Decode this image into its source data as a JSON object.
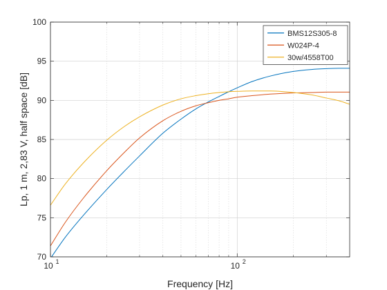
{
  "chart_data": {
    "type": "line",
    "title": "",
    "xlabel": "Frequency [Hz]",
    "ylabel": "Lp, 1 m, 2,83 V, half space [dB]",
    "xscale": "log",
    "xlim": [
      10,
      400
    ],
    "ylim": [
      70,
      100
    ],
    "x_ticks": [
      {
        "value": 10,
        "base": "10",
        "exp": "1"
      },
      {
        "value": 100,
        "base": "10",
        "exp": "2"
      }
    ],
    "y_ticks": [
      70,
      75,
      80,
      85,
      90,
      95,
      100
    ],
    "grid": true,
    "legend_position": "top-right",
    "x": [
      10,
      12,
      15,
      20,
      25,
      30,
      40,
      50,
      60,
      70,
      80,
      90,
      100,
      120,
      150,
      200,
      250,
      300,
      350,
      400
    ],
    "series": [
      {
        "name": "BMS12S305-8",
        "color": "#0072BD",
        "values": [
          69.8,
          72.5,
          75.3,
          78.6,
          81.0,
          82.9,
          85.8,
          87.6,
          88.9,
          89.8,
          90.5,
          91.1,
          91.6,
          92.4,
          93.1,
          93.7,
          93.95,
          94.05,
          94.1,
          94.1
        ]
      },
      {
        "name": "W024P-4",
        "color": "#D95319",
        "values": [
          71.4,
          74.4,
          77.5,
          81.0,
          83.4,
          85.2,
          87.4,
          88.6,
          89.3,
          89.7,
          90.0,
          90.2,
          90.4,
          90.6,
          90.8,
          90.95,
          91.0,
          91.05,
          91.05,
          91.05
        ]
      },
      {
        "name": "30w/4558T00",
        "color": "#EDB120",
        "values": [
          76.6,
          79.3,
          82.0,
          84.9,
          86.7,
          87.9,
          89.4,
          90.2,
          90.6,
          90.85,
          91.0,
          91.1,
          91.15,
          91.2,
          91.2,
          91.0,
          90.7,
          90.3,
          89.95,
          89.5
        ]
      }
    ]
  }
}
